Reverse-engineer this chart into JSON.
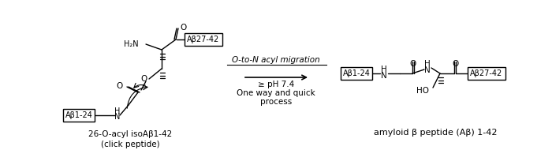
{
  "fig_width": 7.0,
  "fig_height": 2.09,
  "dpi": 100,
  "bg_color": "#ffffff",
  "left_label1": "26-O-acyl isoAβ1-42",
  "left_label2": "(click peptide)",
  "right_label": "amyloid β peptide (Aβ) 1-42",
  "arrow_label_line1": "O-to-N acyl migration",
  "arrow_label_line2": "≥ pH 7.4",
  "arrow_label_line3": "One way and quick",
  "arrow_label_line4": "process",
  "box_ab1_24": "Aβ1-24",
  "box_ab27_42": "Aβ27-42",
  "text_color": "#000000",
  "line_color": "#000000"
}
